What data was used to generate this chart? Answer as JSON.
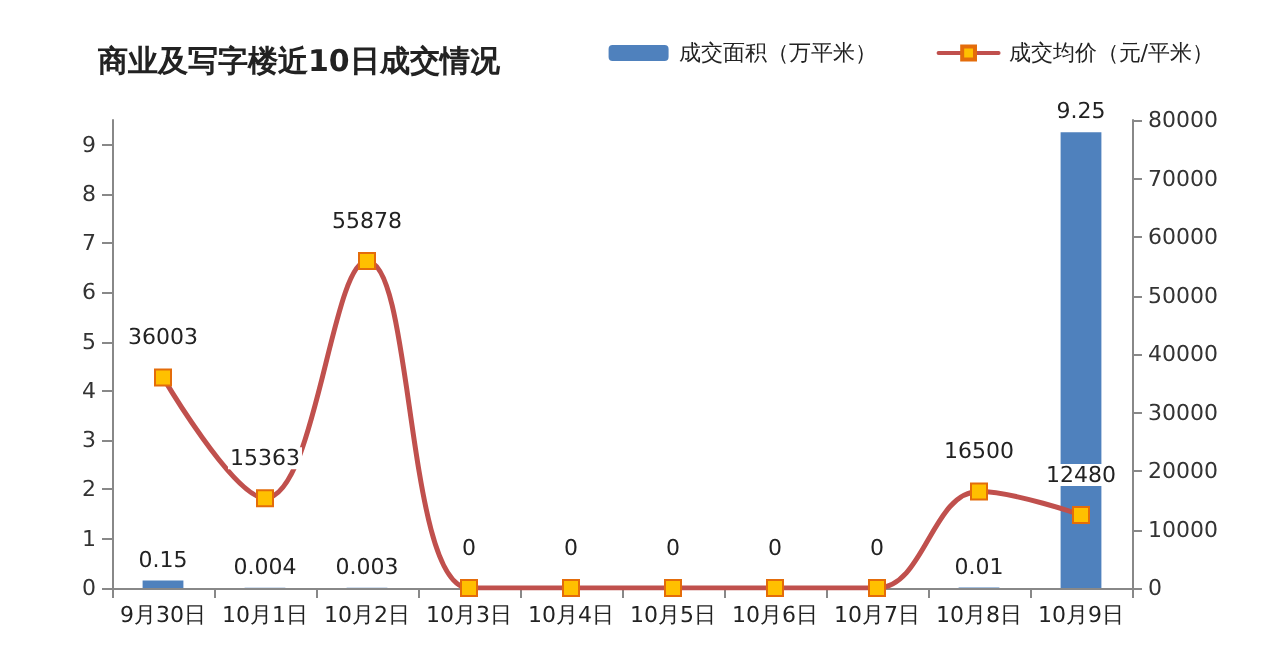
{
  "chart_data": {
    "type": "bar",
    "title": "商业及写字楼近10日成交情况",
    "categories": [
      "9月30日",
      "10月1日",
      "10月2日",
      "10月3日",
      "10月4日",
      "10月5日",
      "10月6日",
      "10月7日",
      "10月8日",
      "10月9日"
    ],
    "series": [
      {
        "name": "成交面积（万平米）",
        "color": "#4f81bd",
        "values": [
          0.15,
          0.004,
          0.003,
          0,
          0,
          0,
          0,
          0,
          0.01,
          9.25
        ],
        "value_labels": [
          "0.15",
          "0.004",
          "0.003",
          null,
          null,
          null,
          null,
          null,
          "0.01",
          "9.25"
        ]
      },
      {
        "name": "成交均价（元/平米）",
        "type": "line",
        "axis": "y2",
        "color": "#c0504d",
        "values": [
          36003,
          15363,
          55878,
          0,
          0,
          0,
          0,
          0,
          16500,
          12480
        ]
      }
    ],
    "ylim": [
      0,
      9.5
    ],
    "yticks": [
      0,
      1,
      2,
      3,
      4,
      5,
      6,
      7,
      8,
      9
    ],
    "y2lim": [
      0,
      80000
    ],
    "y2ticks": [
      0,
      10000,
      20000,
      30000,
      40000,
      50000,
      60000,
      70000,
      80000
    ],
    "data_labels": true,
    "legend": "top right",
    "marker": "square",
    "grid": false
  }
}
